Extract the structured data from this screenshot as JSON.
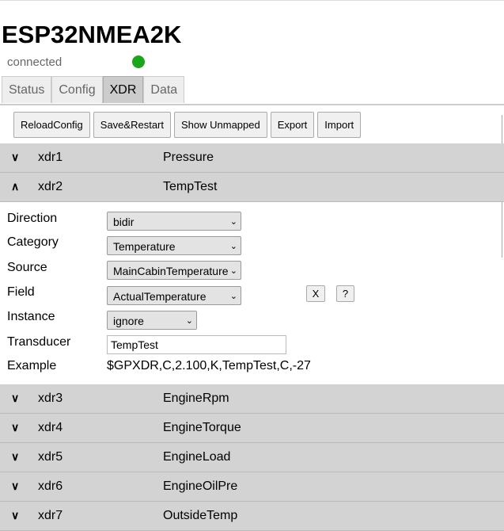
{
  "app": {
    "title": "ESP32NMEA2K",
    "status": "connected",
    "status_color": "#1aa51a"
  },
  "tabs": [
    {
      "label": "Status"
    },
    {
      "label": "Config"
    },
    {
      "label": "XDR",
      "active": true
    },
    {
      "label": "Data"
    }
  ],
  "toolbar": {
    "reload": "ReloadConfig",
    "save": "Save&Restart",
    "unmapped": "Show Unmapped",
    "export": "Export",
    "import": "Import"
  },
  "rows": [
    {
      "name": "xdr1",
      "title": "Pressure",
      "expanded": false
    },
    {
      "name": "xdr2",
      "title": "TempTest",
      "expanded": true
    },
    {
      "name": "xdr3",
      "title": "EngineRpm",
      "expanded": false
    },
    {
      "name": "xdr4",
      "title": "EngineTorque",
      "expanded": false
    },
    {
      "name": "xdr5",
      "title": "EngineLoad",
      "expanded": false
    },
    {
      "name": "xdr6",
      "title": "EngineOilPre",
      "expanded": false
    },
    {
      "name": "xdr7",
      "title": "OutsideTemp",
      "expanded": false
    }
  ],
  "detail": {
    "labels": {
      "direction": "Direction",
      "category": "Category",
      "source": "Source",
      "field": "Field",
      "instance": "Instance",
      "transducer": "Transducer",
      "example": "Example"
    },
    "direction": "bidir",
    "category": "Temperature",
    "source": "MainCabinTemperature",
    "field": "ActualTemperature",
    "instance": "ignore",
    "transducer": "TempTest",
    "example": "$GPXDR,C,2.100,K,TempTest,C,-27",
    "clear_label": "X",
    "help_label": "?"
  }
}
